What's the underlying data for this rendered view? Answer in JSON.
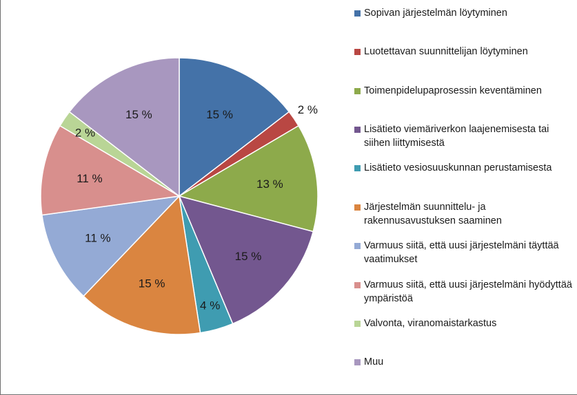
{
  "chart_data": {
    "type": "pie",
    "title": "",
    "legend_position": "right",
    "slices": [
      {
        "name": "Sopivan järjestelmän löytyminen",
        "value": 15,
        "label": "15 %",
        "color": "#4472A8"
      },
      {
        "name": "Luotettavan suunnittelijan löytyminen",
        "value": 2,
        "label": "2 %",
        "color": "#B94743"
      },
      {
        "name": "Toimenpidelupaprosessin keventäminen",
        "value": 13,
        "label": "13 %",
        "color": "#8DAA4B"
      },
      {
        "name": "Lisätieto viemäriverkon laajenemisesta tai siihen liittymisestä",
        "value": 15,
        "label": "15 %",
        "color": "#73578F"
      },
      {
        "name": "Lisätieto vesiosuuskunnan perustamisesta",
        "value": 4,
        "label": "4 %",
        "color": "#3F9CB1"
      },
      {
        "name": "Järjestelmän suunnittelu- ja rakennusavustuksen saaminen",
        "value": 15,
        "label": "15 %",
        "color": "#DA8540"
      },
      {
        "name": "Varmuus siitä, että uusi järjestelmäni täyttää vaatimukset",
        "value": 11,
        "label": "11 %",
        "color": "#94AAD5"
      },
      {
        "name": "Varmuus siitä, että uusi järjestelmäni hyödyttää ympäristöä",
        "value": 11,
        "label": "11 %",
        "color": "#D88F8D"
      },
      {
        "name": "Valvonta, viranomaistarkastus",
        "value": 2,
        "label": "2 %",
        "color": "#B9D596"
      },
      {
        "name": "Muu",
        "value": 15,
        "label": "15 %",
        "color": "#A897BF"
      }
    ]
  }
}
